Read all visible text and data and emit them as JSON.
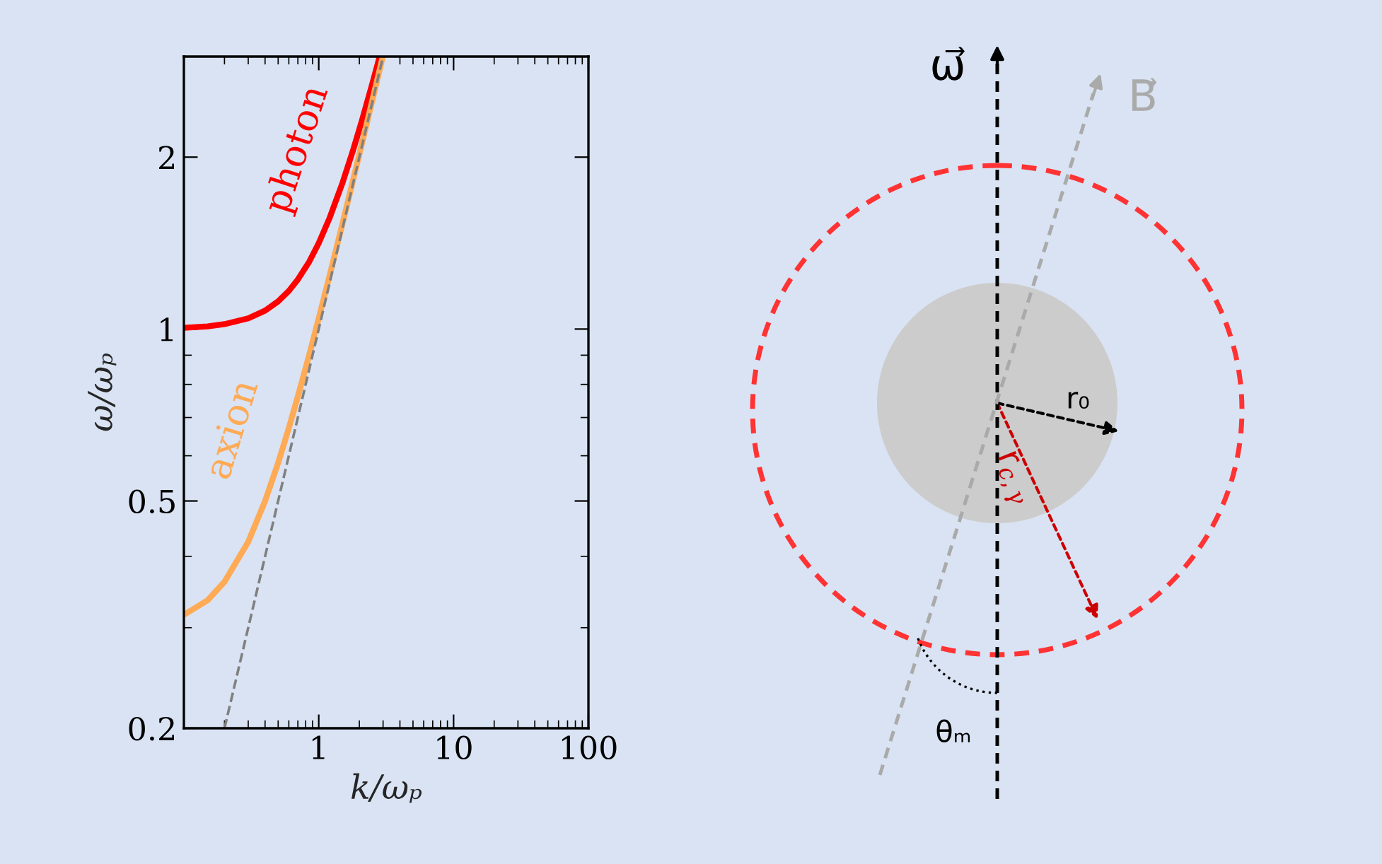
{
  "chart_data": [
    {
      "type": "line",
      "xlabel": "k/ωₚ",
      "ylabel": "ω/ωₚ",
      "log": "xy",
      "xlim": [
        0.1,
        100
      ],
      "ylim": [
        0.2,
        3
      ],
      "xticks": [
        1,
        10,
        100
      ],
      "yticks": [
        0.2,
        0.5,
        1,
        2
      ],
      "grid": false,
      "legend": false,
      "series": [
        {
          "name": "photon",
          "color": "#ff0000",
          "line_style": "solid",
          "x": [
            0.1,
            0.15,
            0.2,
            0.3,
            0.4,
            0.5,
            0.6,
            0.7,
            0.85,
            1,
            1.2,
            1.5,
            1.8,
            2.1,
            2.5,
            2.83
          ],
          "values": [
            1.005,
            1.011,
            1.02,
            1.044,
            1.077,
            1.118,
            1.166,
            1.221,
            1.312,
            1.414,
            1.562,
            1.803,
            2.059,
            2.326,
            2.693,
            3.0
          ]
        },
        {
          "name": "axion",
          "color": "#ffaa55",
          "line_style": "solid",
          "x": [
            0.1,
            0.15,
            0.2,
            0.3,
            0.4,
            0.5,
            0.6,
            0.7,
            0.85,
            1,
            1.2,
            1.5,
            1.8,
            2.1,
            2.5,
            2.98
          ],
          "values": [
            0.316,
            0.335,
            0.361,
            0.424,
            0.5,
            0.583,
            0.671,
            0.762,
            0.901,
            1.044,
            1.237,
            1.53,
            1.825,
            2.121,
            2.518,
            2.995
          ]
        },
        {
          "color": "#808080",
          "line_style": "dashed",
          "x": [
            0.2,
            3
          ],
          "values": [
            0.2,
            3
          ]
        }
      ]
    },
    {
      "type": "other",
      "annotations": [
        "ω⃗",
        "B⃗",
        "r₀",
        "r$_{c,γ}$",
        "θₘ"
      ]
    }
  ]
}
